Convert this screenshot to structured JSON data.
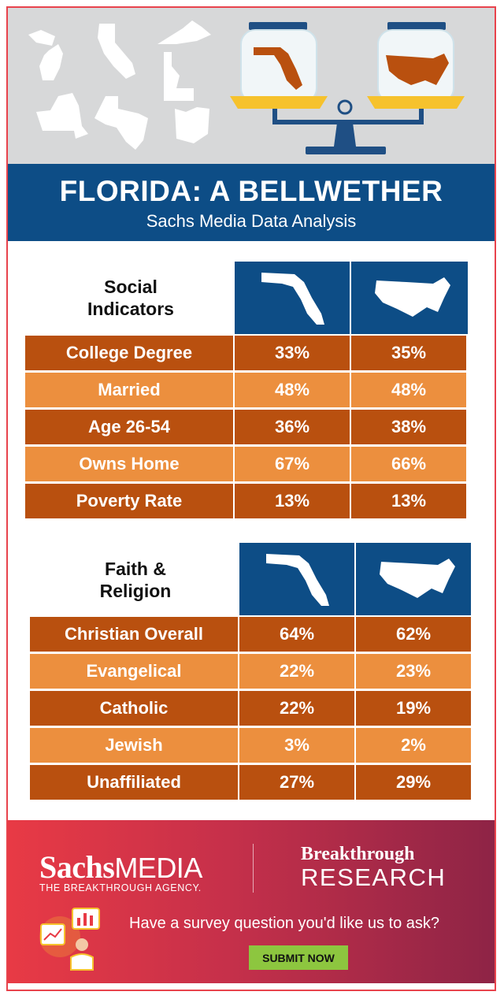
{
  "header": {
    "title": "FLORIDA: A BELLWETHER",
    "subtitle": "Sachs Media Data Analysis"
  },
  "colors": {
    "navy": "#0d4d86",
    "dark_orange": "#b9500f",
    "light_orange": "#ec8f3e",
    "submit_green": "#8dc63f",
    "footer_red": "#e83a45"
  },
  "social": {
    "title_line1": "Social",
    "title_line2": "Indicators",
    "rows": [
      {
        "label": "College Degree",
        "florida": "33%",
        "us": "35%"
      },
      {
        "label": "Married",
        "florida": "48%",
        "us": "48%"
      },
      {
        "label": "Age 26-54",
        "florida": "36%",
        "us": "38%"
      },
      {
        "label": "Owns Home",
        "florida": "67%",
        "us": "66%"
      },
      {
        "label": "Poverty Rate",
        "florida": "13%",
        "us": "13%"
      }
    ]
  },
  "faith": {
    "title_line1": "Faith &",
    "title_line2": "Religion",
    "rows": [
      {
        "label": "Christian Overall",
        "florida": "64%",
        "us": "62%"
      },
      {
        "label": "Evangelical",
        "florida": "22%",
        "us": "23%"
      },
      {
        "label": "Catholic",
        "florida": "22%",
        "us": "19%"
      },
      {
        "label": "Jewish",
        "florida": "3%",
        "us": "2%"
      },
      {
        "label": "Unaffiliated",
        "florida": "27%",
        "us": "29%"
      }
    ]
  },
  "footer": {
    "brand_bold": "Sachs",
    "brand_light": "MEDIA",
    "brand_tagline": "THE BREAKTHROUGH AGENCY.",
    "research_line1": "Breakthrough",
    "research_line2": "RESEARCH",
    "question": "Have a survey question you'd like us to ask?",
    "submit_label": "SUBMIT NOW"
  }
}
